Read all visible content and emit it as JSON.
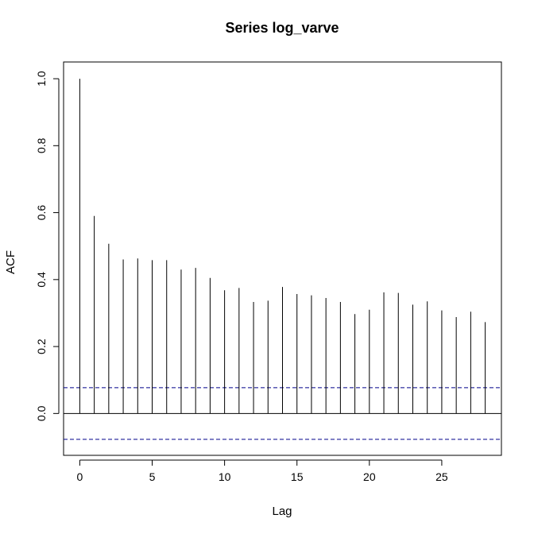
{
  "chart_data": {
    "type": "bar",
    "title": "Series  log_varve",
    "xlabel": "Lag",
    "ylabel": "ACF",
    "x": [
      0,
      1,
      2,
      3,
      4,
      5,
      6,
      7,
      8,
      9,
      10,
      11,
      12,
      13,
      14,
      15,
      16,
      17,
      18,
      19,
      20,
      21,
      22,
      23,
      24,
      25,
      26,
      27,
      28
    ],
    "values": [
      1.0,
      0.59,
      0.507,
      0.46,
      0.463,
      0.458,
      0.458,
      0.43,
      0.435,
      0.405,
      0.368,
      0.375,
      0.333,
      0.337,
      0.378,
      0.357,
      0.353,
      0.345,
      0.333,
      0.297,
      0.31,
      0.362,
      0.36,
      0.325,
      0.335,
      0.308,
      0.288,
      0.304,
      0.273
    ],
    "confidence_bound": 0.0771,
    "xlim": [
      -1.12,
      29.12
    ],
    "ylim": [
      -0.125,
      1.05
    ],
    "xticks": [
      0,
      5,
      10,
      15,
      20,
      25
    ],
    "xtick_labels": [
      "0",
      "5",
      "10",
      "15",
      "20",
      "25"
    ],
    "yticks": [
      0.0,
      0.2,
      0.4,
      0.6,
      0.8,
      1.0
    ],
    "ytick_labels": [
      "0.0",
      "0.2",
      "0.4",
      "0.6",
      "0.8",
      "1.0"
    ],
    "zero_line": true,
    "bound_color": "#00008b",
    "line_color": "#000000",
    "grid": false,
    "legend": "none"
  }
}
